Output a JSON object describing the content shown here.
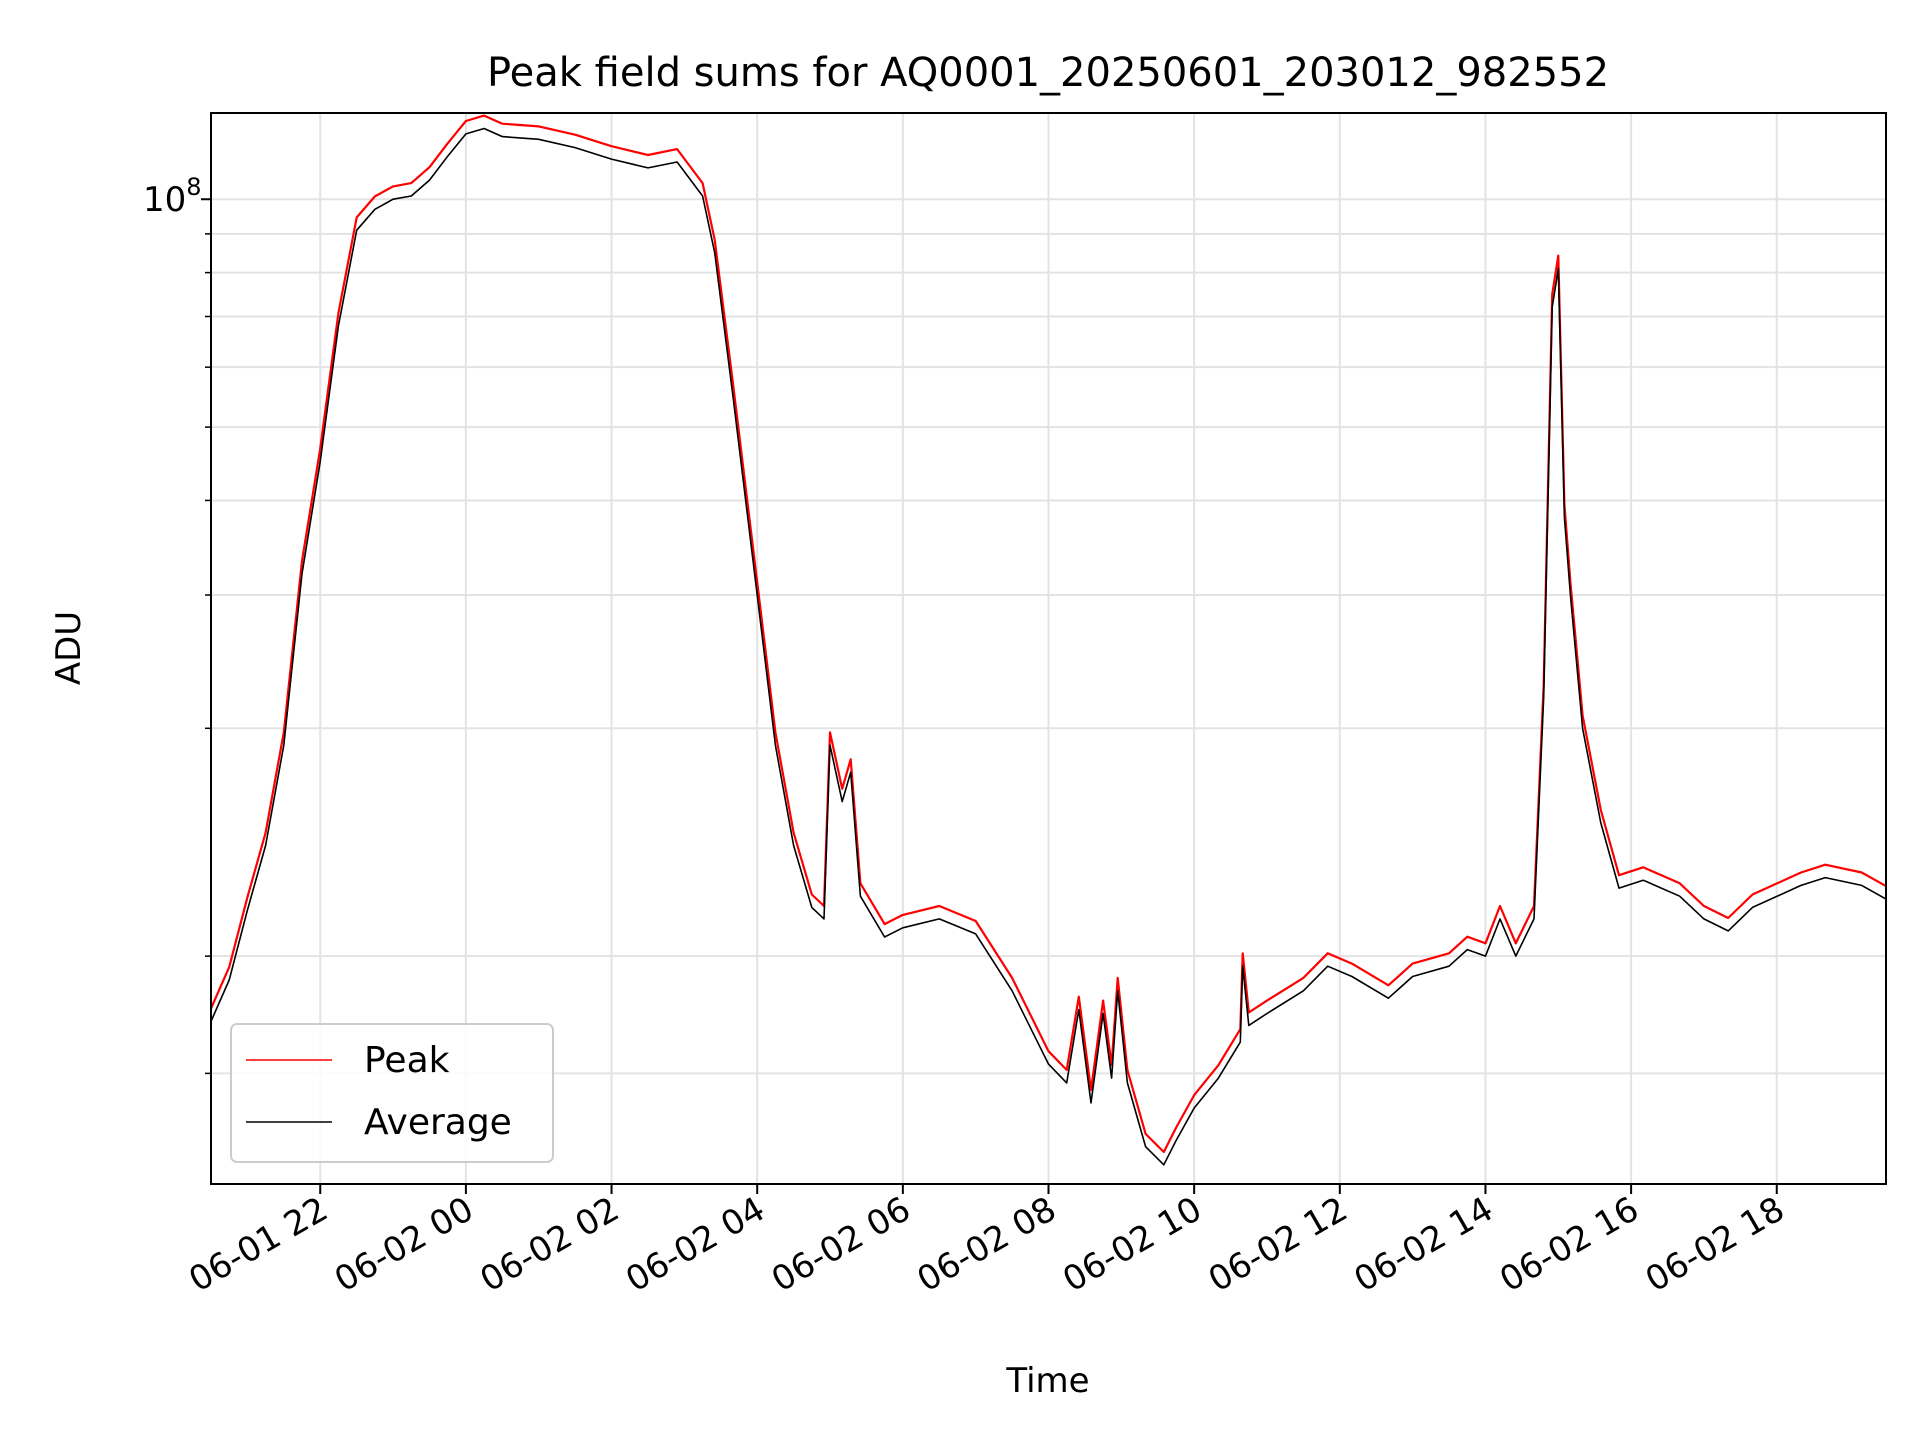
{
  "chart_data": {
    "type": "line",
    "title": "Peak field sums for AQ0001_20250601_203012_982552",
    "xlabel": "Time",
    "ylabel": "ADU",
    "y_scale": "log",
    "ylim": [
      5000000,
      130000000
    ],
    "y_major_tick_labels": [
      {
        "value": 100000000,
        "base": "10",
        "exp": "8"
      }
    ],
    "y_minor_ticks": [
      7000000,
      10000000,
      20000000,
      30000000,
      40000000,
      50000000,
      60000000,
      70000000,
      80000000,
      90000000
    ],
    "xlim": [
      "2025-06-01T20:30",
      "2025-06-02T19:30"
    ],
    "x_tick_labels": [
      {
        "t": "2025-06-01T22:00",
        "label": "06-01 22"
      },
      {
        "t": "2025-06-02T00:00",
        "label": "06-02 00"
      },
      {
        "t": "2025-06-02T02:00",
        "label": "06-02 02"
      },
      {
        "t": "2025-06-02T04:00",
        "label": "06-02 04"
      },
      {
        "t": "2025-06-02T06:00",
        "label": "06-02 06"
      },
      {
        "t": "2025-06-02T08:00",
        "label": "06-02 08"
      },
      {
        "t": "2025-06-02T10:00",
        "label": "06-02 10"
      },
      {
        "t": "2025-06-02T12:00",
        "label": "06-02 12"
      },
      {
        "t": "2025-06-02T14:00",
        "label": "06-02 14"
      },
      {
        "t": "2025-06-02T16:00",
        "label": "06-02 16"
      },
      {
        "t": "2025-06-02T18:00",
        "label": "06-02 18"
      }
    ],
    "grid": true,
    "legend_position": "lower-left",
    "series": [
      {
        "name": "Peak",
        "color": "#ff0000",
        "ratio_to_average": 1.04
      },
      {
        "name": "Average",
        "color": "#000000",
        "ratio_to_average": 1.0
      }
    ],
    "average_points": [
      [
        "2025-06-01T20:30",
        8200000
      ],
      [
        "2025-06-01T20:45",
        9300000
      ],
      [
        "2025-06-01T21:00",
        11500000
      ],
      [
        "2025-06-01T21:15",
        14000000
      ],
      [
        "2025-06-01T21:30",
        19000000
      ],
      [
        "2025-06-01T21:45",
        32000000
      ],
      [
        "2025-06-01T22:00",
        45000000
      ],
      [
        "2025-06-01T22:15",
        68000000
      ],
      [
        "2025-06-01T22:30",
        91000000
      ],
      [
        "2025-06-01T22:45",
        97000000
      ],
      [
        "2025-06-01T23:00",
        100000000
      ],
      [
        "2025-06-01T23:15",
        101000000
      ],
      [
        "2025-06-01T23:30",
        106000000
      ],
      [
        "2025-06-01T23:45",
        114000000
      ],
      [
        "2025-06-02T00:00",
        122000000
      ],
      [
        "2025-06-02T00:15",
        124000000
      ],
      [
        "2025-06-02T00:30",
        121000000
      ],
      [
        "2025-06-02T01:00",
        120000000
      ],
      [
        "2025-06-02T01:30",
        117000000
      ],
      [
        "2025-06-02T02:00",
        113000000
      ],
      [
        "2025-06-02T02:30",
        110000000
      ],
      [
        "2025-06-02T02:54",
        112000000
      ],
      [
        "2025-06-02T03:15",
        101000000
      ],
      [
        "2025-06-02T03:25",
        85000000
      ],
      [
        "2025-06-02T03:40",
        55000000
      ],
      [
        "2025-06-02T04:00",
        30000000
      ],
      [
        "2025-06-02T04:15",
        19000000
      ],
      [
        "2025-06-02T04:30",
        14000000
      ],
      [
        "2025-06-02T04:45",
        11600000
      ],
      [
        "2025-06-02T04:55",
        11200000
      ],
      [
        "2025-06-02T05:00",
        19000000
      ],
      [
        "2025-06-02T05:10",
        16000000
      ],
      [
        "2025-06-02T05:17",
        17500000
      ],
      [
        "2025-06-02T05:25",
        12000000
      ],
      [
        "2025-06-02T05:45",
        10600000
      ],
      [
        "2025-06-02T06:00",
        10900000
      ],
      [
        "2025-06-02T06:30",
        11200000
      ],
      [
        "2025-06-02T07:00",
        10700000
      ],
      [
        "2025-06-02T07:30",
        9000000
      ],
      [
        "2025-06-02T08:00",
        7200000
      ],
      [
        "2025-06-02T08:15",
        6800000
      ],
      [
        "2025-06-02T08:25",
        8500000
      ],
      [
        "2025-06-02T08:35",
        6400000
      ],
      [
        "2025-06-02T08:45",
        8400000
      ],
      [
        "2025-06-02T08:52",
        6900000
      ],
      [
        "2025-06-02T08:57",
        9000000
      ],
      [
        "2025-06-02T09:05",
        6800000
      ],
      [
        "2025-06-02T09:20",
        5600000
      ],
      [
        "2025-06-02T09:35",
        5300000
      ],
      [
        "2025-06-02T09:45",
        5700000
      ],
      [
        "2025-06-02T10:00",
        6300000
      ],
      [
        "2025-06-02T10:20",
        6900000
      ],
      [
        "2025-06-02T10:38",
        7700000
      ],
      [
        "2025-06-02T10:40",
        9700000
      ],
      [
        "2025-06-02T10:45",
        8100000
      ],
      [
        "2025-06-02T11:00",
        8400000
      ],
      [
        "2025-06-02T11:30",
        9000000
      ],
      [
        "2025-06-02T11:50",
        9700000
      ],
      [
        "2025-06-02T12:10",
        9400000
      ],
      [
        "2025-06-02T12:40",
        8800000
      ],
      [
        "2025-06-02T13:00",
        9400000
      ],
      [
        "2025-06-02T13:30",
        9700000
      ],
      [
        "2025-06-02T13:45",
        10200000
      ],
      [
        "2025-06-02T14:00",
        10000000
      ],
      [
        "2025-06-02T14:12",
        11200000
      ],
      [
        "2025-06-02T14:25",
        10000000
      ],
      [
        "2025-06-02T14:40",
        11200000
      ],
      [
        "2025-06-02T14:48",
        22000000
      ],
      [
        "2025-06-02T14:55",
        72000000
      ],
      [
        "2025-06-02T15:00",
        81000000
      ],
      [
        "2025-06-02T15:05",
        38000000
      ],
      [
        "2025-06-02T15:10",
        30000000
      ],
      [
        "2025-06-02T15:20",
        20000000
      ],
      [
        "2025-06-02T15:35",
        15000000
      ],
      [
        "2025-06-02T15:50",
        12300000
      ],
      [
        "2025-06-02T16:10",
        12600000
      ],
      [
        "2025-06-02T16:40",
        12000000
      ],
      [
        "2025-06-02T17:00",
        11200000
      ],
      [
        "2025-06-02T17:20",
        10800000
      ],
      [
        "2025-06-02T17:40",
        11600000
      ],
      [
        "2025-06-02T18:20",
        12400000
      ],
      [
        "2025-06-02T18:40",
        12700000
      ],
      [
        "2025-06-02T19:10",
        12400000
      ],
      [
        "2025-06-02T19:30",
        11900000
      ]
    ]
  }
}
